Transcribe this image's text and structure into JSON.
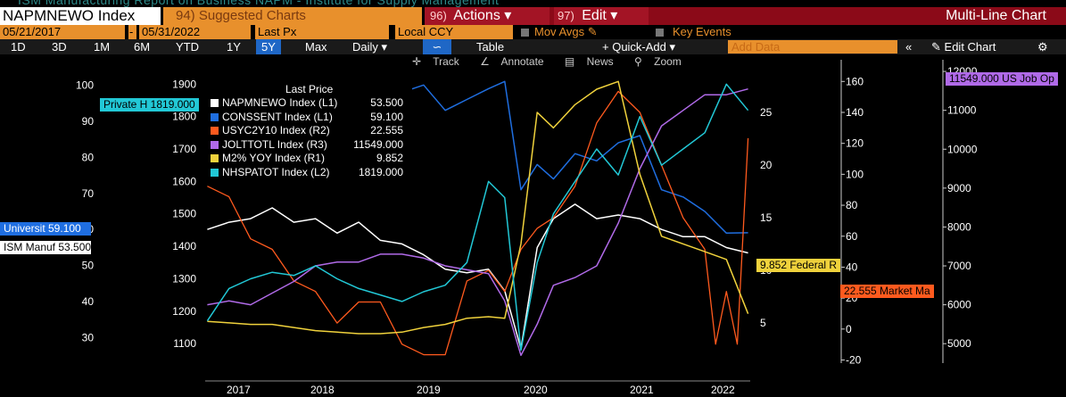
{
  "header": {
    "bg_title": "ISM Manufacturing Report on Business NAPM - Institute for Supply Management",
    "ticker": "NAPMNEWO Index",
    "suggested_num": "94)",
    "suggested_label": "Suggested Charts",
    "actions_num": "96)",
    "actions_label": "Actions",
    "edit_num": "97)",
    "edit_label": "Edit",
    "chart_type": "Multi-Line Chart"
  },
  "options": {
    "start_date": "05/21/2017",
    "end_date": "05/31/2022",
    "price_field": "Last Px",
    "currency": "Local CCY",
    "mov_avgs": "Mov Avgs",
    "key_events": "Key Events"
  },
  "periods": [
    "1D",
    "3D",
    "1M",
    "6M",
    "YTD",
    "1Y",
    "5Y",
    "Max"
  ],
  "active_period": "5Y",
  "frequency": "Daily",
  "table_label": "Table",
  "quick_add_label": "+ Quick-Add",
  "add_data_placeholder": "Add Data",
  "edit_chart_label": "Edit Chart",
  "tools": {
    "track": "Track",
    "annotate": "Annotate",
    "news": "News",
    "zoom": "Zoom"
  },
  "legend": {
    "header": "Last Price",
    "rows": [
      {
        "name": "NAPMNEWO Index  (L1)",
        "value": "53.500",
        "color": "#ffffff"
      },
      {
        "name": "CONSSENT Index  (L1)",
        "value": "59.100",
        "color": "#1f6ee0"
      },
      {
        "name": "USYC2Y10 Index  (R2)",
        "value": "22.555",
        "color": "#ff5a1e"
      },
      {
        "name": "JOLTTOTL Index  (R3)",
        "value": "11549.000",
        "color": "#b06ae8"
      },
      {
        "name": "M2% YOY Index  (R1)",
        "value": "9.852",
        "color": "#f0d23c"
      },
      {
        "name": "NHSPATOT Index  (L2)",
        "value": "1819.000",
        "color": "#22c8d6"
      }
    ]
  },
  "flags": {
    "private": "Private H 1819.000",
    "universit": "Universit 59.100",
    "ism": "ISM Manuf 53.500",
    "federal": "9.852 Federal R",
    "market": "22.555 Market Ma",
    "jobs": "11549.000 US Job Op"
  },
  "chart_data": {
    "type": "line",
    "x_range": [
      "2017-05-21",
      "2022-05-31"
    ],
    "x_tick_labels": [
      "2017",
      "2018",
      "2019",
      "2020",
      "2021",
      "2022"
    ],
    "axes": {
      "L1": {
        "ticks": [
          30,
          40,
          50,
          60,
          70,
          80,
          90,
          100
        ],
        "range": [
          23,
          107
        ]
      },
      "L2": {
        "ticks": [
          1100,
          1200,
          1300,
          1400,
          1500,
          1600,
          1700,
          1800,
          1900
        ],
        "range": [
          1040,
          1975
        ]
      },
      "R2": {
        "ticks": [
          5,
          10,
          15,
          20,
          25
        ],
        "range": [
          1.2,
          30
        ]
      },
      "R1": {
        "ticks": [
          -20,
          0,
          20,
          40,
          60,
          80,
          100,
          120,
          140,
          160
        ],
        "range": [
          -22,
          174
        ]
      },
      "R3": {
        "ticks": [
          5000,
          6000,
          7000,
          8000,
          9000,
          10000,
          11000,
          12000
        ],
        "range": [
          4500,
          12300
        ]
      }
    },
    "series": [
      {
        "name": "NAPMNEWO Index",
        "axis": "L1",
        "color": "#ffffff",
        "x": [
          2017.4,
          2017.6,
          2017.8,
          2018.0,
          2018.2,
          2018.4,
          2018.6,
          2018.8,
          2019.0,
          2019.2,
          2019.4,
          2019.6,
          2019.8,
          2020.0,
          2020.15,
          2020.3,
          2020.45,
          2020.6,
          2020.8,
          2021.0,
          2021.2,
          2021.4,
          2021.6,
          2021.8,
          2022.0,
          2022.2,
          2022.4
        ],
        "y": [
          60,
          62,
          63,
          66,
          62,
          63,
          59,
          62,
          57,
          56,
          53,
          49,
          48,
          49,
          43,
          27,
          55,
          63,
          67,
          63,
          64,
          63,
          60,
          58,
          58,
          55,
          53.5
        ]
      },
      {
        "name": "CONSSENT Index",
        "axis": "L1",
        "color": "#1f6ee0",
        "x": [
          2017.4,
          2017.6,
          2017.8,
          2018.0,
          2018.2,
          2018.4,
          2018.6,
          2018.8,
          2019.0,
          2019.2,
          2019.4,
          2019.6,
          2019.8,
          2020.0,
          2020.15,
          2020.3,
          2020.45,
          2020.6,
          2020.8,
          2021.0,
          2021.2,
          2021.4,
          2021.6,
          2021.8,
          2022.0,
          2022.2,
          2022.4
        ],
        "y": [
          97,
          96,
          100,
          98,
          101,
          98,
          100,
          98,
          91,
          98,
          100,
          93,
          96,
          99,
          101,
          71,
          78,
          74,
          81,
          79,
          84,
          86,
          71,
          69,
          65,
          59,
          59.1
        ]
      },
      {
        "name": "USYC2Y10 Index",
        "axis": "R2",
        "color": "#ff5a1e",
        "x": [
          2017.4,
          2017.6,
          2017.8,
          2018.0,
          2018.2,
          2018.4,
          2018.6,
          2018.8,
          2019.0,
          2019.2,
          2019.4,
          2019.6,
          2019.8,
          2020.0,
          2020.15,
          2020.3,
          2020.45,
          2020.6,
          2020.8,
          2021.0,
          2021.2,
          2021.4,
          2021.6,
          2021.8,
          2022.0,
          2022.1,
          2022.2,
          2022.3,
          2022.4
        ],
        "y": [
          18,
          17,
          13,
          12,
          9,
          8,
          5,
          7,
          7,
          3,
          2,
          2,
          9,
          10,
          8,
          12,
          14,
          15,
          18,
          24,
          27,
          25,
          20,
          15,
          12,
          3,
          8,
          3,
          22.555
        ]
      },
      {
        "name": "JOLTTOTL Index",
        "axis": "R3",
        "color": "#b06ae8",
        "x": [
          2017.4,
          2017.6,
          2017.8,
          2018.0,
          2018.2,
          2018.4,
          2018.6,
          2018.8,
          2019.0,
          2019.2,
          2019.4,
          2019.6,
          2019.8,
          2020.0,
          2020.15,
          2020.3,
          2020.45,
          2020.6,
          2020.8,
          2021.0,
          2021.2,
          2021.4,
          2021.6,
          2021.8,
          2022.0,
          2022.2,
          2022.4
        ],
        "y": [
          6000,
          6100,
          6000,
          6300,
          6600,
          7000,
          7100,
          7100,
          7300,
          7300,
          7200,
          7000,
          6900,
          6800,
          6100,
          4700,
          5500,
          6500,
          6700,
          7000,
          8100,
          9500,
          10600,
          11000,
          11400,
          11400,
          11549
        ]
      },
      {
        "name": "M2% YOY Index",
        "axis": "R1",
        "color": "#f0d23c",
        "x": [
          2017.4,
          2017.6,
          2017.8,
          2018.0,
          2018.2,
          2018.4,
          2018.6,
          2018.8,
          2019.0,
          2019.2,
          2019.4,
          2019.6,
          2019.8,
          2020.0,
          2020.15,
          2020.3,
          2020.45,
          2020.6,
          2020.8,
          2021.0,
          2021.2,
          2021.4,
          2021.6,
          2021.8,
          2022.0,
          2022.2,
          2022.4
        ],
        "y": [
          5,
          4,
          3,
          3,
          1,
          -1,
          -2,
          -3,
          -3,
          -2,
          1,
          3,
          7,
          8,
          7,
          55,
          140,
          130,
          145,
          155,
          160,
          100,
          60,
          55,
          50,
          45,
          9.852
        ]
      },
      {
        "name": "NHSPATOT Index",
        "axis": "L2",
        "color": "#22c8d6",
        "x": [
          2017.4,
          2017.6,
          2017.8,
          2018.0,
          2018.2,
          2018.4,
          2018.6,
          2018.8,
          2019.0,
          2019.2,
          2019.4,
          2019.6,
          2019.8,
          2020.0,
          2020.15,
          2020.3,
          2020.45,
          2020.6,
          2020.8,
          2021.0,
          2021.2,
          2021.4,
          2021.6,
          2021.8,
          2022.0,
          2022.2,
          2022.4
        ],
        "y": [
          1170,
          1270,
          1300,
          1320,
          1310,
          1340,
          1300,
          1270,
          1250,
          1230,
          1260,
          1280,
          1350,
          1600,
          1550,
          1080,
          1350,
          1500,
          1600,
          1700,
          1620,
          1800,
          1650,
          1700,
          1750,
          1900,
          1819
        ]
      }
    ]
  }
}
